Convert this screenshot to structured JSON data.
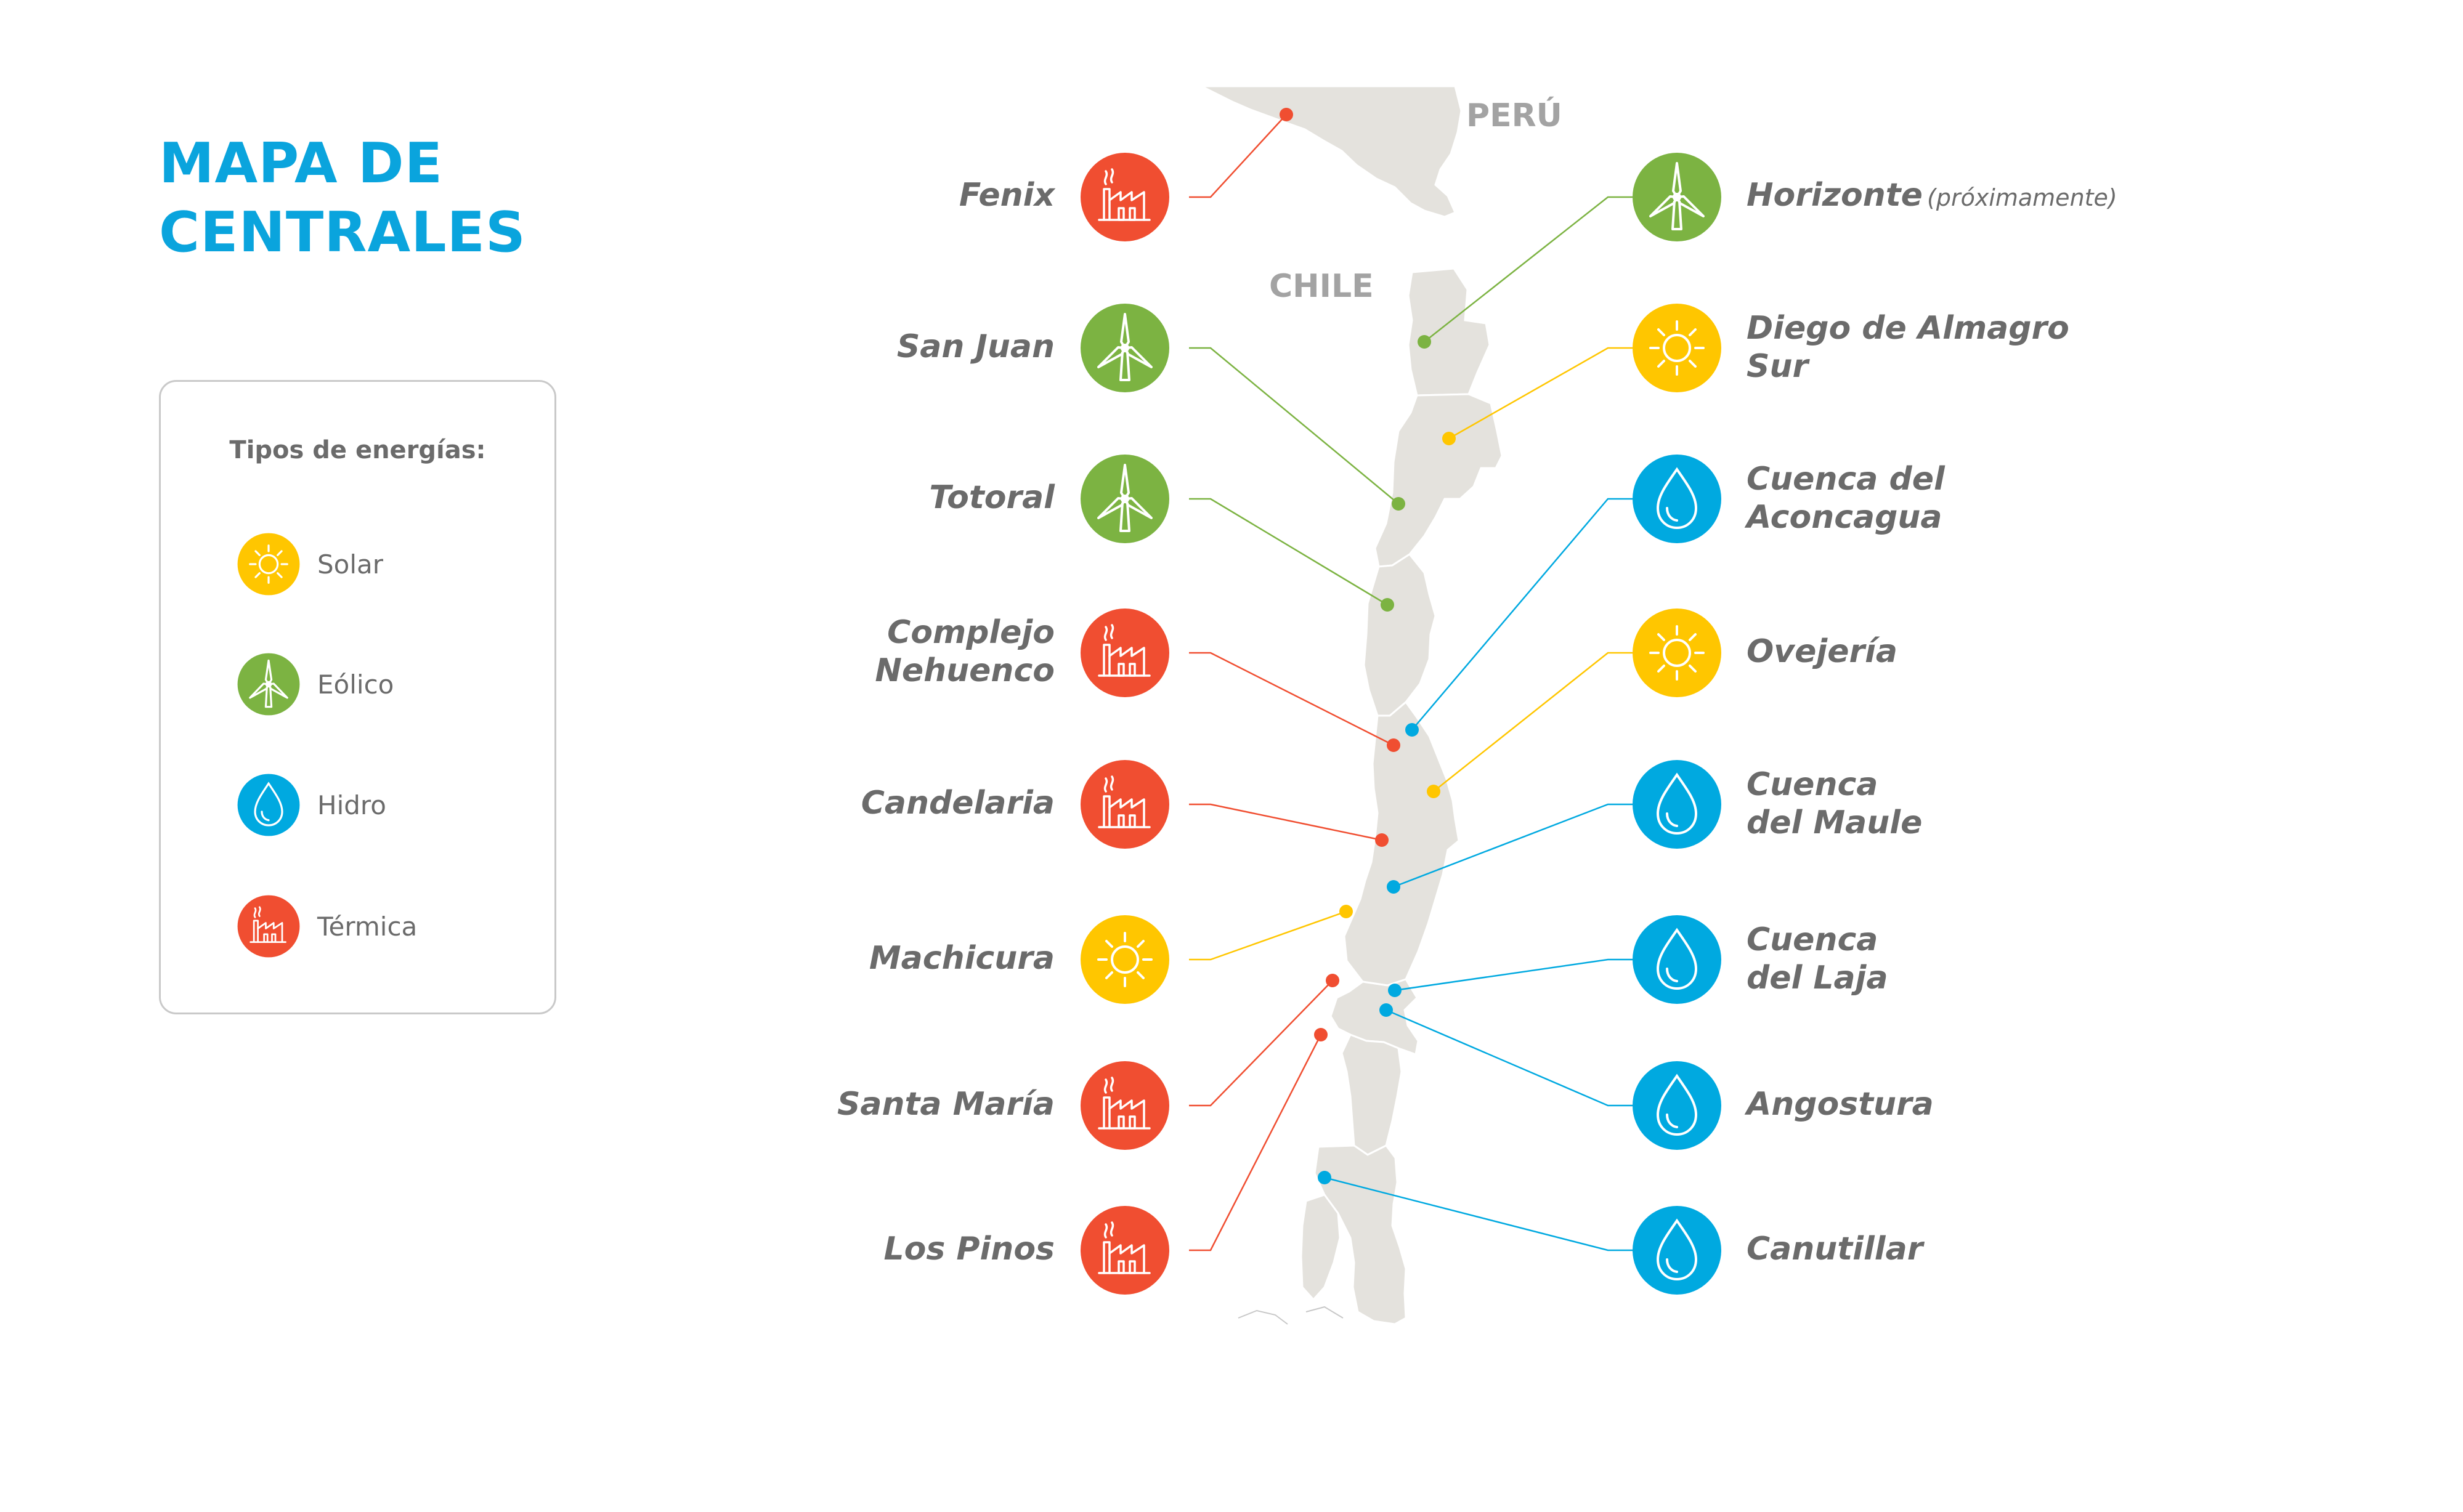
{
  "title": {
    "line1": "MAPA DE",
    "line2": "CENTRALES"
  },
  "legend": {
    "heading": "Tipos de energías:",
    "items": [
      {
        "label": "Solar",
        "icon": "sun-icon",
        "color": "#FFC600"
      },
      {
        "label": "Eólico",
        "icon": "wind-turbine-icon",
        "color": "#7CB342"
      },
      {
        "label": "Hidro",
        "icon": "water-drop-icon",
        "color": "#00A9E0"
      },
      {
        "label": "Térmica",
        "icon": "factory-icon",
        "color": "#F04E31"
      }
    ]
  },
  "map": {
    "country_labels": {
      "peru": "PERÚ",
      "chile": "CHILE"
    },
    "plants_left": [
      {
        "name": "Fenix",
        "type": "termica"
      },
      {
        "name": "San Juan",
        "type": "eolico"
      },
      {
        "name": "Totoral",
        "type": "eolico"
      },
      {
        "name": "Complejo Nehuenco",
        "lines": [
          "Complejo",
          "Nehuenco"
        ],
        "type": "termica"
      },
      {
        "name": "Candelaria",
        "type": "termica"
      },
      {
        "name": "Machicura",
        "type": "solar"
      },
      {
        "name": "Santa María",
        "type": "termica"
      },
      {
        "name": "Los Pinos",
        "type": "termica"
      }
    ],
    "plants_right": [
      {
        "name": "Horizonte",
        "note": "(próximamente)",
        "type": "eolico"
      },
      {
        "name": "Diego de Almagro Sur",
        "lines": [
          "Diego de Almagro",
          "Sur"
        ],
        "type": "solar"
      },
      {
        "name": "Cuenca del Aconcagua",
        "lines": [
          "Cuenca del",
          "Aconcagua"
        ],
        "type": "hidro"
      },
      {
        "name": "Ovejería",
        "type": "solar"
      },
      {
        "name": "Cuenca del Maule",
        "lines": [
          "Cuenca",
          "del Maule"
        ],
        "type": "hidro"
      },
      {
        "name": "Cuenca del Laja",
        "lines": [
          "Cuenca",
          "del Laja"
        ],
        "type": "hidro"
      },
      {
        "name": "Angostura",
        "type": "hidro"
      },
      {
        "name": "Canutillar",
        "type": "hidro"
      }
    ]
  },
  "colors": {
    "solar": "#FFC600",
    "eolico": "#7CB342",
    "hidro": "#00A9E0",
    "termica": "#F04E31",
    "title": "#0AA4DD",
    "label_text": "#6B6B6B",
    "land": "#E4E2DD"
  }
}
